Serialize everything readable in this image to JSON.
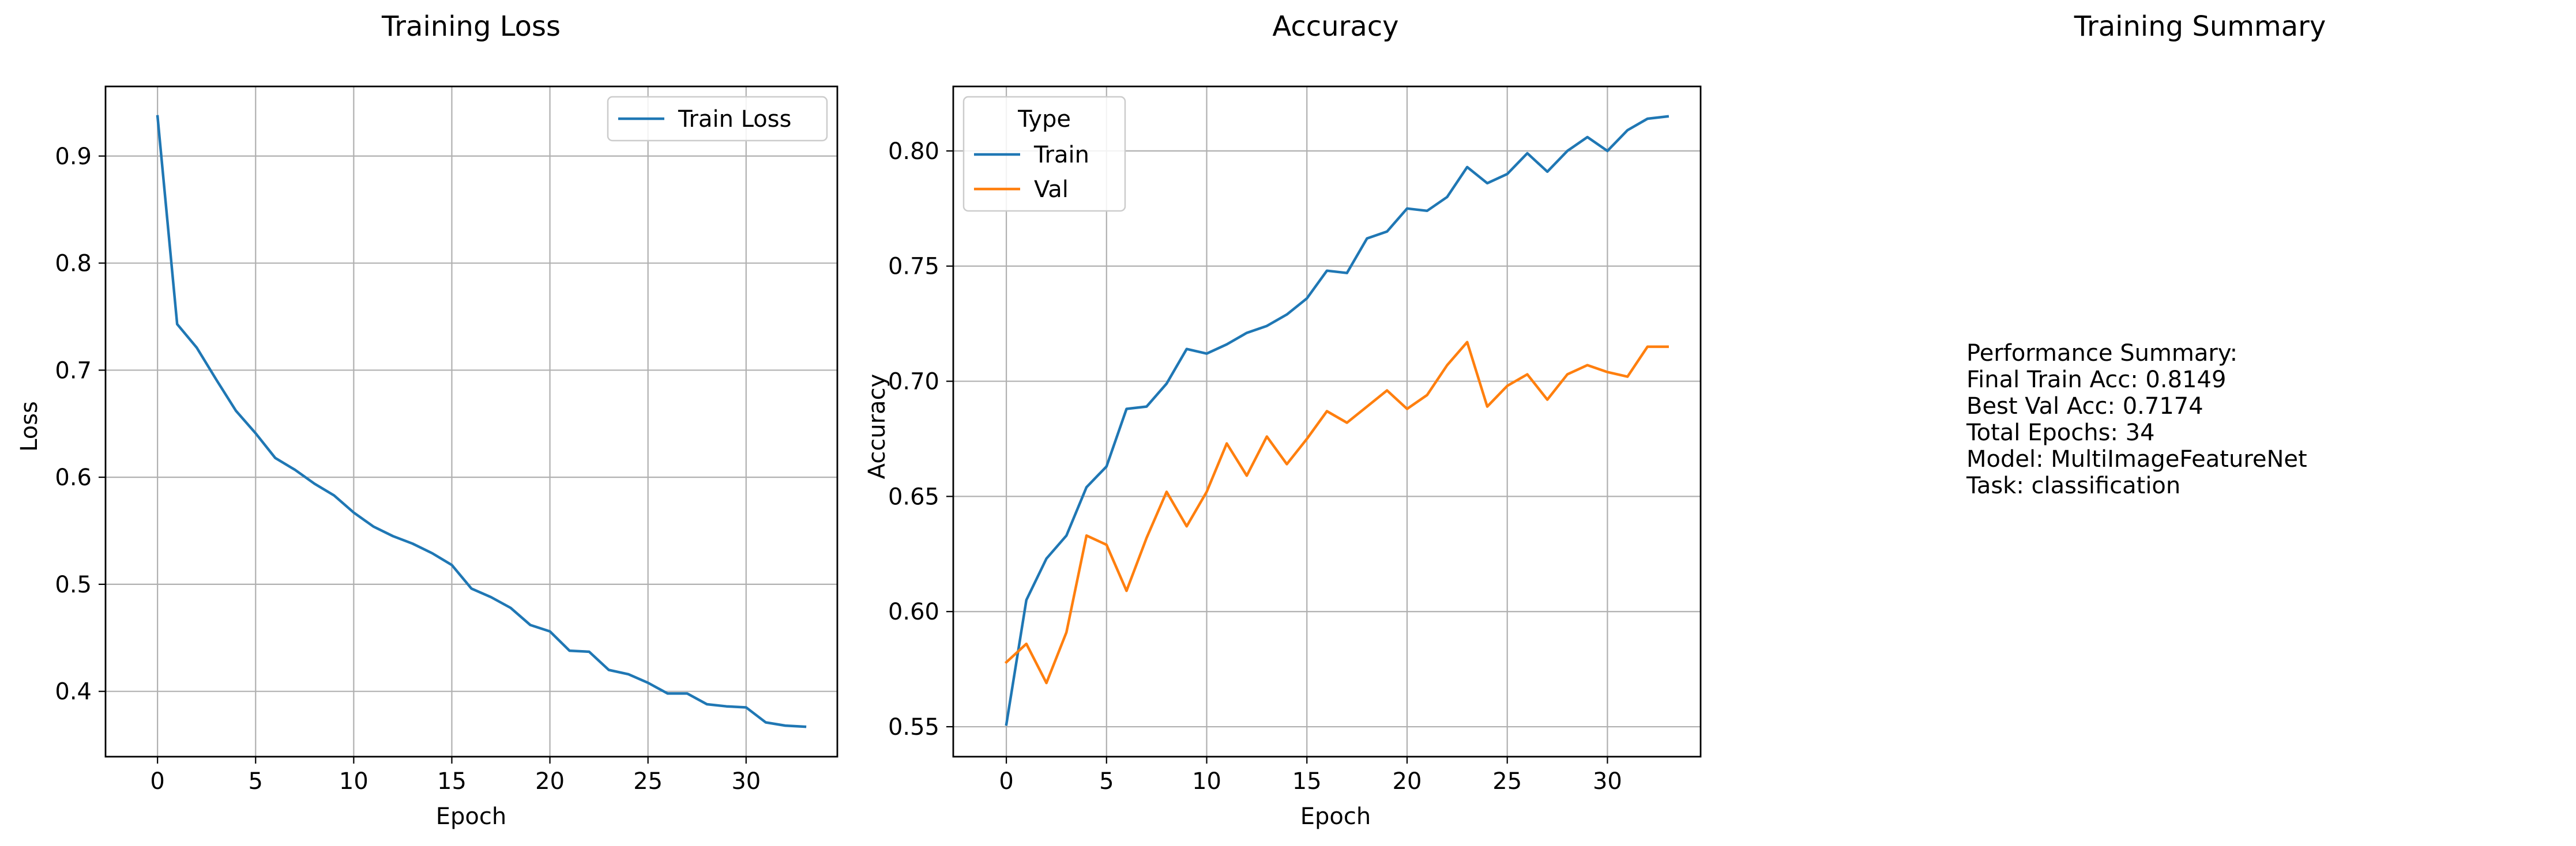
{
  "colors": {
    "train": "#1f77b4",
    "val": "#ff7f0e",
    "grid": "#b0b0b0",
    "axis": "#000000"
  },
  "summary": {
    "title": "Training Summary",
    "lines": [
      "Performance Summary:",
      "Final Train Acc: 0.8149",
      "Best Val Acc: 0.7174",
      "Total Epochs: 34",
      "Model: MultiImageFeatureNet",
      "Task: classification"
    ]
  },
  "chart_data": [
    {
      "type": "line",
      "title": "Training Loss",
      "xlabel": "Epoch",
      "ylabel": "Loss",
      "xlim": [
        -2.65,
        34.65
      ],
      "ylim": [
        0.339,
        0.965
      ],
      "xticks": [
        0,
        5,
        10,
        15,
        20,
        25,
        30
      ],
      "yticks": [
        0.4,
        0.5,
        0.6,
        0.7,
        0.8,
        0.9
      ],
      "ytick_labels": [
        "0.4",
        "0.5",
        "0.6",
        "0.7",
        "0.8",
        "0.9"
      ],
      "grid": true,
      "legend": "upper right",
      "legend_title": "",
      "x": [
        0,
        1,
        2,
        3,
        4,
        5,
        6,
        7,
        8,
        9,
        10,
        11,
        12,
        13,
        14,
        15,
        16,
        17,
        18,
        19,
        20,
        21,
        22,
        23,
        24,
        25,
        26,
        27,
        28,
        29,
        30,
        31,
        32,
        33
      ],
      "series": [
        {
          "name": "Train Loss",
          "color": "train",
          "values": [
            0.937,
            0.743,
            0.721,
            0.691,
            0.662,
            0.641,
            0.618,
            0.607,
            0.594,
            0.583,
            0.567,
            0.554,
            0.545,
            0.538,
            0.529,
            0.518,
            0.496,
            0.488,
            0.478,
            0.462,
            0.456,
            0.438,
            0.437,
            0.42,
            0.416,
            0.408,
            0.398,
            0.398,
            0.388,
            0.386,
            0.385,
            0.371,
            0.368,
            0.367
          ]
        }
      ]
    },
    {
      "type": "line",
      "title": "Accuracy",
      "xlabel": "Epoch",
      "ylabel": "Accuracy",
      "xlim": [
        -2.65,
        34.65
      ],
      "ylim": [
        0.537,
        0.828
      ],
      "xticks": [
        0,
        5,
        10,
        15,
        20,
        25,
        30
      ],
      "yticks": [
        0.55,
        0.6,
        0.65,
        0.7,
        0.75,
        0.8
      ],
      "ytick_labels": [
        "0.55",
        "0.60",
        "0.65",
        "0.70",
        "0.75",
        "0.80"
      ],
      "grid": true,
      "legend": "upper left",
      "legend_title": "Type",
      "x": [
        0,
        1,
        2,
        3,
        4,
        5,
        6,
        7,
        8,
        9,
        10,
        11,
        12,
        13,
        14,
        15,
        16,
        17,
        18,
        19,
        20,
        21,
        22,
        23,
        24,
        25,
        26,
        27,
        28,
        29,
        30,
        31,
        32,
        33
      ],
      "series": [
        {
          "name": "Train",
          "color": "train",
          "values": [
            0.551,
            0.605,
            0.623,
            0.633,
            0.654,
            0.663,
            0.688,
            0.689,
            0.699,
            0.714,
            0.712,
            0.716,
            0.721,
            0.724,
            0.729,
            0.736,
            0.748,
            0.747,
            0.762,
            0.765,
            0.775,
            0.774,
            0.78,
            0.793,
            0.786,
            0.79,
            0.799,
            0.791,
            0.8,
            0.806,
            0.8,
            0.809,
            0.814,
            0.815
          ]
        },
        {
          "name": "Val",
          "color": "val",
          "values": [
            0.578,
            0.586,
            0.569,
            0.591,
            0.633,
            0.629,
            0.609,
            0.632,
            0.652,
            0.637,
            0.652,
            0.673,
            0.659,
            0.676,
            0.664,
            0.675,
            0.687,
            0.682,
            0.689,
            0.696,
            0.688,
            0.694,
            0.707,
            0.717,
            0.689,
            0.698,
            0.703,
            0.692,
            0.703,
            0.707,
            0.704,
            0.702,
            0.715,
            0.715
          ]
        }
      ]
    }
  ]
}
